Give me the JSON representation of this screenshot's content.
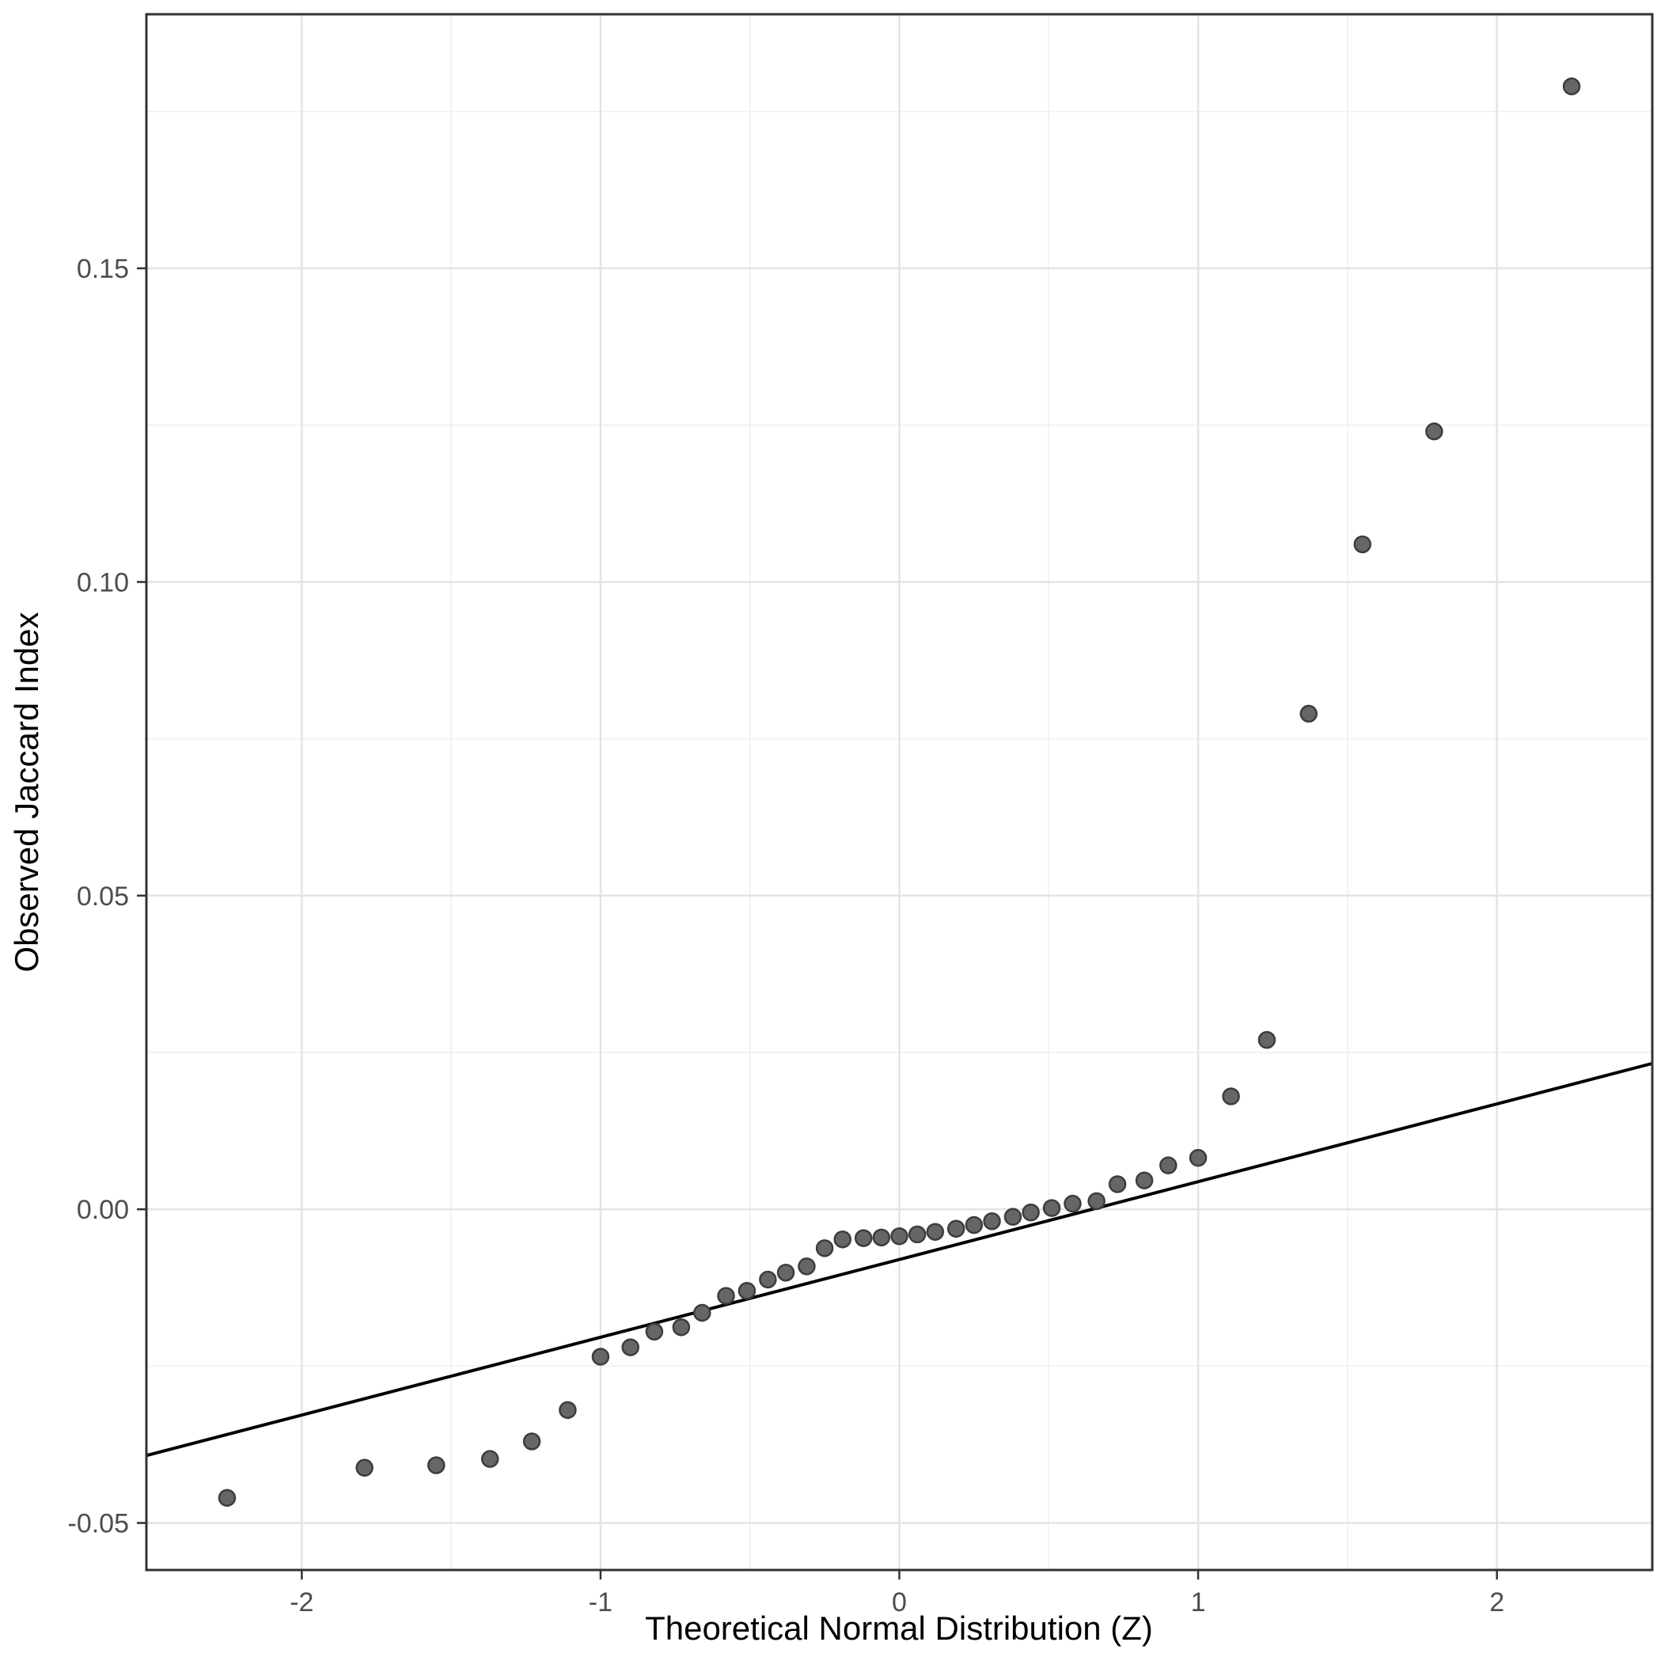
{
  "figure": {
    "background": "#ffffff"
  },
  "chart_data": {
    "type": "scatter",
    "title": "",
    "xlabel": "Theoretical Normal Distribution (Z)",
    "ylabel": "Observed Jaccard Index",
    "xlim": [
      -2.52,
      2.52
    ],
    "ylim": [
      -0.0575,
      0.1905
    ],
    "x_ticks": [
      -2,
      -1,
      0,
      1,
      2
    ],
    "x_tick_labels": [
      "-2",
      "-1",
      "0",
      "1",
      "2"
    ],
    "y_ticks": [
      -0.05,
      0.0,
      0.05,
      0.1,
      0.15
    ],
    "y_tick_labels": [
      "-0.05",
      "0.00",
      "0.05",
      "0.10",
      "0.15"
    ],
    "x_minor_ticks": [
      -1.5,
      -0.5,
      0.5,
      1.5
    ],
    "y_minor_ticks": [
      -0.025,
      0.025,
      0.075,
      0.125,
      0.175
    ],
    "grid": true,
    "legend": false,
    "x": [
      -2.25,
      -1.79,
      -1.55,
      -1.37,
      -1.23,
      -1.11,
      -1.0,
      -0.9,
      -0.82,
      -0.73,
      -0.66,
      -0.58,
      -0.51,
      -0.44,
      -0.38,
      -0.31,
      -0.25,
      -0.19,
      -0.12,
      -0.06,
      0.0,
      0.06,
      0.12,
      0.19,
      0.25,
      0.31,
      0.38,
      0.44,
      0.51,
      0.58,
      0.66,
      0.73,
      0.82,
      0.9,
      1.0,
      1.11,
      1.23,
      1.37,
      1.55,
      1.79,
      2.25
    ],
    "y": [
      -0.046,
      -0.0412,
      -0.0408,
      -0.0398,
      -0.037,
      -0.032,
      -0.0235,
      -0.022,
      -0.0195,
      -0.0188,
      -0.0165,
      -0.0138,
      -0.013,
      -0.0112,
      -0.0101,
      -0.0091,
      -0.0062,
      -0.0048,
      -0.0046,
      -0.0045,
      -0.0043,
      -0.004,
      -0.0036,
      -0.0031,
      -0.0025,
      -0.0019,
      -0.0012,
      -0.0005,
      0.0002,
      0.0009,
      0.0013,
      0.004,
      0.0046,
      0.007,
      0.0082,
      0.018,
      0.027,
      0.079,
      0.106,
      0.124,
      0.179
    ],
    "reference_line": {
      "slope": 0.0124,
      "intercept": -0.008
    },
    "style": {
      "point_fill": "#666666",
      "point_stroke": "#3d3d3d",
      "line_color": "#000000",
      "grid_major_color": "#e4e4e4",
      "grid_minor_color": "#f1f1f1",
      "panel_border_color": "#333333",
      "tick_color": "#333333",
      "tick_label_color": "#4d4d4d",
      "panel_background": "#ffffff"
    }
  }
}
